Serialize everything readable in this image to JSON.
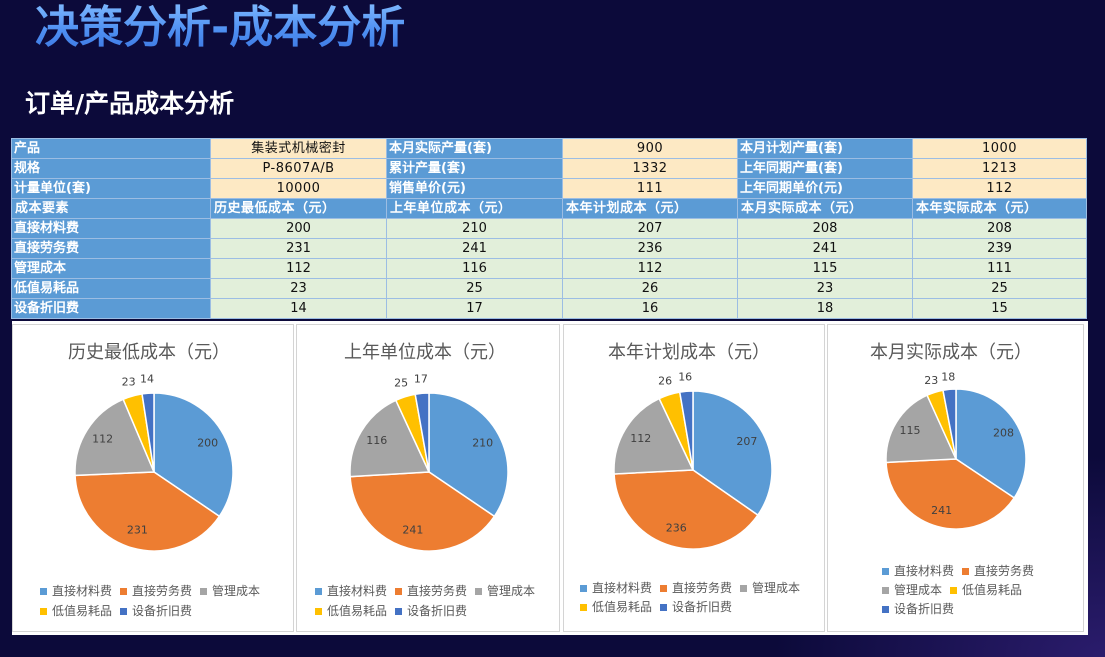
{
  "header": {
    "title": "决策分析-成本分析",
    "subtitle": "订单/产品成本分析"
  },
  "colors": {
    "label_cell": "#5b9bd5",
    "value_cell": "#fde9c4",
    "data_cell": "#e2efda"
  },
  "table": {
    "info_rows": [
      [
        "产品",
        "集装式机械密封",
        "本月实际产量(套)",
        "900",
        "本月计划产量(套)",
        "1000"
      ],
      [
        "规格",
        "P-8607A/B",
        "累计产量(套)",
        "1332",
        "上年同期产量(套)",
        "1213"
      ],
      [
        "计量单位(套)",
        "10000",
        "销售单价(元)",
        "111",
        "上年同期单价(元)",
        "112"
      ]
    ],
    "columns": [
      "成本要素",
      "历史最低成本（元）",
      "上年单位成本（元）",
      "本年计划成本（元）",
      "本月实际成本（元）",
      "本年实际成本（元）"
    ],
    "rows": [
      [
        "直接材料费",
        "200",
        "210",
        "207",
        "208",
        "208"
      ],
      [
        "直接劳务费",
        "231",
        "241",
        "236",
        "241",
        "239"
      ],
      [
        "管理成本",
        "112",
        "116",
        "112",
        "115",
        "111"
      ],
      [
        "低值易耗品",
        "23",
        "25",
        "26",
        "23",
        "25"
      ],
      [
        "设备折旧费",
        "14",
        "17",
        "16",
        "18",
        "15"
      ]
    ]
  },
  "chart_data": [
    {
      "type": "pie",
      "title": "历史最低成本（元）",
      "categories": [
        "直接材料费",
        "直接劳务费",
        "管理成本",
        "低值易耗品",
        "设备折旧费"
      ],
      "values": [
        200,
        231,
        112,
        23,
        14
      ],
      "colors": [
        "#5b9bd5",
        "#ed7d31",
        "#a5a5a5",
        "#ffc000",
        "#4472c4"
      ],
      "legend": "bottom"
    },
    {
      "type": "pie",
      "title": "上年单位成本（元）",
      "categories": [
        "直接材料费",
        "直接劳务费",
        "管理成本",
        "低值易耗品",
        "设备折旧费"
      ],
      "values": [
        210,
        241,
        116,
        25,
        17
      ],
      "colors": [
        "#5b9bd5",
        "#ed7d31",
        "#a5a5a5",
        "#ffc000",
        "#4472c4"
      ],
      "legend": "bottom"
    },
    {
      "type": "pie",
      "title": "本年计划成本（元）",
      "categories": [
        "直接材料费",
        "直接劳务费",
        "管理成本",
        "低值易耗品",
        "设备折旧费"
      ],
      "values": [
        207,
        236,
        112,
        26,
        16
      ],
      "colors": [
        "#5b9bd5",
        "#ed7d31",
        "#a5a5a5",
        "#ffc000",
        "#4472c4"
      ],
      "legend": "bottom"
    },
    {
      "type": "pie",
      "title": "本月实际成本（元）",
      "categories": [
        "直接材料费",
        "直接劳务费",
        "管理成本",
        "低值易耗品",
        "设备折旧费"
      ],
      "values": [
        208,
        241,
        115,
        23,
        18
      ],
      "colors": [
        "#5b9bd5",
        "#ed7d31",
        "#a5a5a5",
        "#ffc000",
        "#4472c4"
      ],
      "legend": "bottom"
    }
  ]
}
